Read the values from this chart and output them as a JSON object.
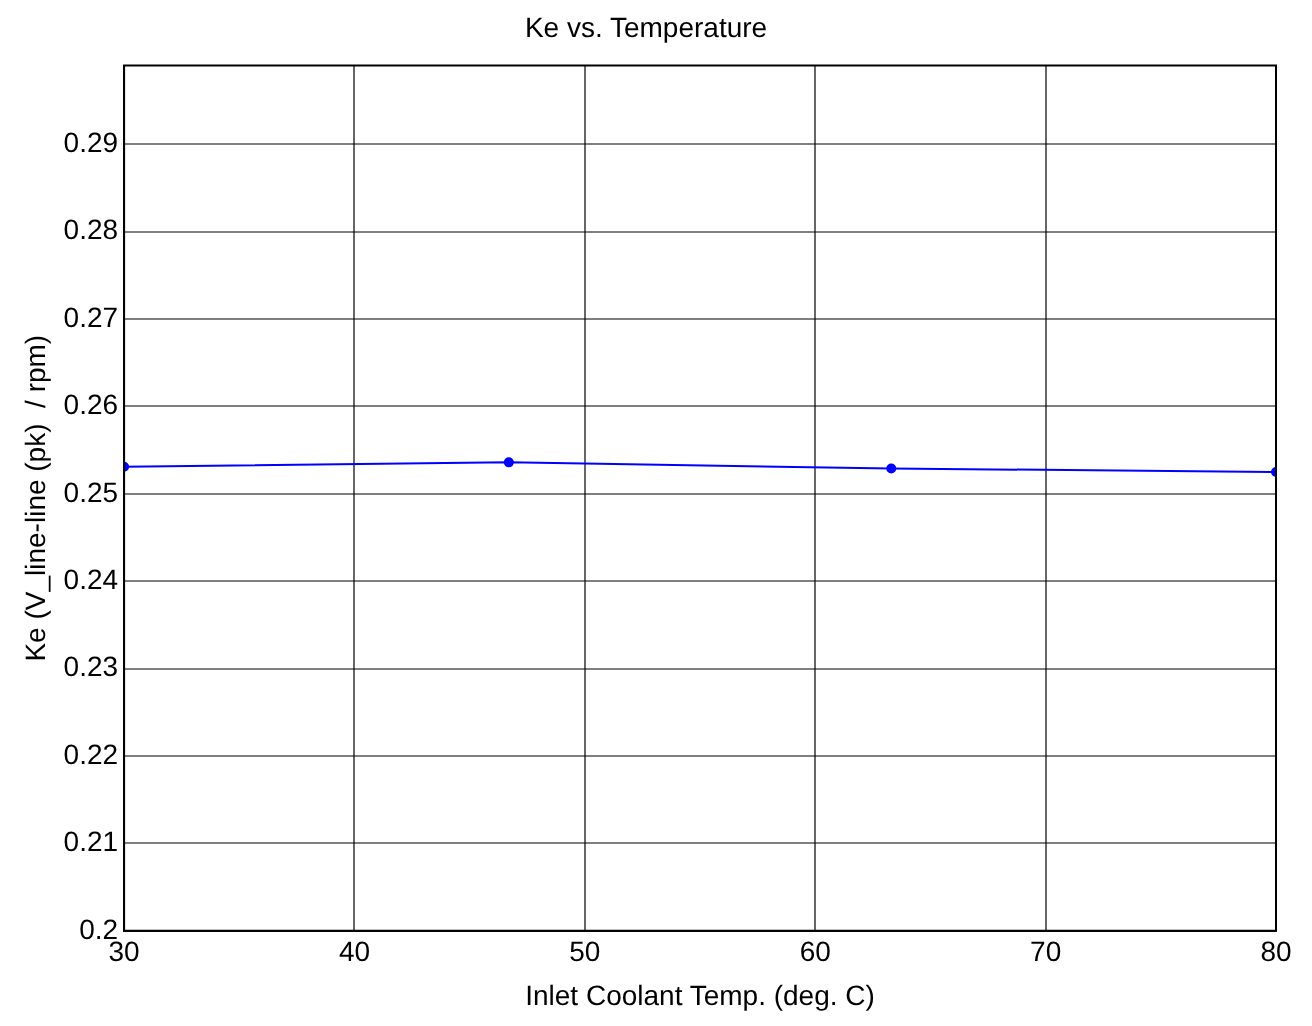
{
  "chart_data": {
    "type": "line",
    "title": "Ke vs. Temperature",
    "xlabel": "Inlet Coolant Temp. (deg. C)",
    "ylabel": "Ke (V_line-line (pk)  / rpm)",
    "x": [
      30,
      46.7,
      63.3,
      80
    ],
    "series": [
      {
        "color": "#0000ff",
        "values": [
          0.2531,
          0.2536,
          0.2529,
          0.2525
        ]
      }
    ],
    "xlim": [
      30,
      80
    ],
    "xticks": [
      30,
      40,
      50,
      60,
      70,
      80
    ],
    "ylim": [
      0.2,
      0.299
    ],
    "yticks": [
      0.2,
      0.21,
      0.22,
      0.23,
      0.24,
      0.25,
      0.26,
      0.27,
      0.28,
      0.29
    ],
    "grid": true,
    "legend": false,
    "marker": "circle",
    "line_style": "solid"
  }
}
